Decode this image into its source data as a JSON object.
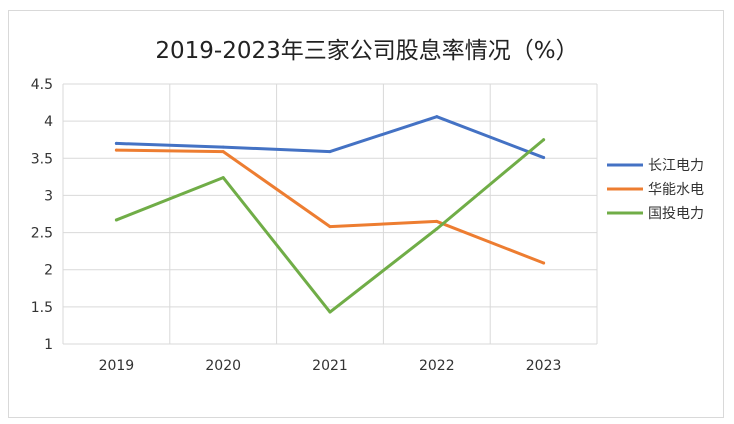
{
  "chart_data": {
    "type": "line",
    "title": "2019-2023年三家公司股息率情况（%）",
    "categories": [
      "2019",
      "2020",
      "2021",
      "2022",
      "2023"
    ],
    "ylim": [
      1,
      4.5
    ],
    "yticks": [
      "1",
      "1.5",
      "2",
      "2.5",
      "3",
      "3.5",
      "4",
      "4.5"
    ],
    "grid": true,
    "legend_position": "right",
    "series": [
      {
        "name": "长江电力",
        "color": "#4472C4",
        "values": [
          3.7,
          3.65,
          3.59,
          4.06,
          3.51
        ]
      },
      {
        "name": "华能水电",
        "color": "#ED7D31",
        "values": [
          3.61,
          3.59,
          2.58,
          2.65,
          2.09
        ]
      },
      {
        "name": "国投电力",
        "color": "#70AD47",
        "values": [
          2.67,
          3.24,
          1.43,
          2.55,
          3.75
        ]
      }
    ]
  }
}
